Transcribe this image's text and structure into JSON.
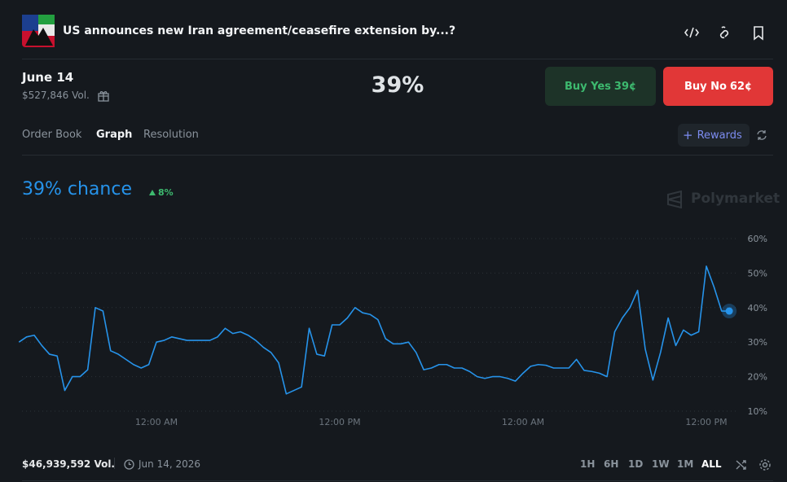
{
  "header": {
    "title": "US announces new Iran agreement/ceasefire extension by...?",
    "date": "June 14",
    "volume": "$527,846 Vol.",
    "probability": "39%"
  },
  "buttons": {
    "yes_label": "Buy Yes",
    "yes_price": "39¢",
    "no_label": "Buy No",
    "no_price": "62¢"
  },
  "tabs": [
    "Order Book",
    "Graph",
    "Resolution"
  ],
  "rewards": "Rewards",
  "headline": {
    "chance": "39% chance",
    "change": "8%",
    "watermark": "Polymarket"
  },
  "chart_data": {
    "type": "line",
    "color": "#2693ea",
    "grid": true,
    "categories": [
      null,
      null,
      null,
      null,
      null,
      null,
      null,
      null,
      null,
      null,
      null,
      null,
      null,
      null,
      null,
      null,
      null,
      null,
      "12:00 AM",
      null,
      null,
      null,
      null,
      null,
      null,
      null,
      null,
      null,
      null,
      null,
      null,
      null,
      null,
      null,
      null,
      null,
      null,
      null,
      null,
      null,
      null,
      null,
      "12:00 PM",
      null,
      null,
      null,
      null,
      null,
      null,
      null,
      null,
      null,
      null,
      null,
      null,
      null,
      null,
      null,
      null,
      null,
      null,
      null,
      null,
      null,
      null,
      null,
      "12:00 AM",
      null,
      null,
      null,
      null,
      null,
      null,
      null,
      null,
      null,
      null,
      null,
      null,
      null,
      null,
      null,
      null,
      null,
      null,
      null,
      null,
      null,
      null,
      null,
      "12:00 PM",
      null,
      null,
      null
    ],
    "values": [
      30,
      31.5,
      32,
      29,
      26.5,
      26,
      16,
      20,
      20,
      22,
      40,
      39,
      27.5,
      26.5,
      25,
      23.5,
      22.5,
      23.5,
      30,
      30.5,
      31.5,
      31,
      30.5,
      30.5,
      30.5,
      30.5,
      31.5,
      34,
      32.5,
      33,
      32,
      30.5,
      28.5,
      27,
      24,
      15,
      16,
      17,
      34,
      26.5,
      26,
      35,
      35,
      37,
      40,
      38.5,
      38,
      36.5,
      31,
      29.5,
      29.5,
      30,
      27,
      22,
      22.5,
      23.5,
      23.5,
      22.5,
      22.5,
      21.5,
      20,
      19.5,
      20,
      20,
      19.5,
      18.7,
      21,
      23,
      23.5,
      23.3,
      22.5,
      22.5,
      22.5,
      25,
      21.8,
      21.5,
      21,
      20,
      33,
      37,
      40,
      45,
      28,
      19,
      27,
      37,
      29,
      33.5,
      32,
      33,
      52,
      46,
      39,
      39
    ],
    "ylim": [
      10,
      60
    ],
    "yticks": [
      {
        "value": 10,
        "label": "10%"
      },
      {
        "value": 20,
        "label": "20%"
      },
      {
        "value": 30,
        "label": "30%"
      },
      {
        "value": 40,
        "label": "40%"
      },
      {
        "value": 50,
        "label": "50%"
      },
      {
        "value": 60,
        "label": "60%"
      }
    ]
  },
  "footer": {
    "volume": "$46,939,592 Vol.",
    "date": "Jun 14, 2026",
    "ranges": [
      "1H",
      "6H",
      "1D",
      "1W",
      "1M",
      "ALL"
    ]
  }
}
